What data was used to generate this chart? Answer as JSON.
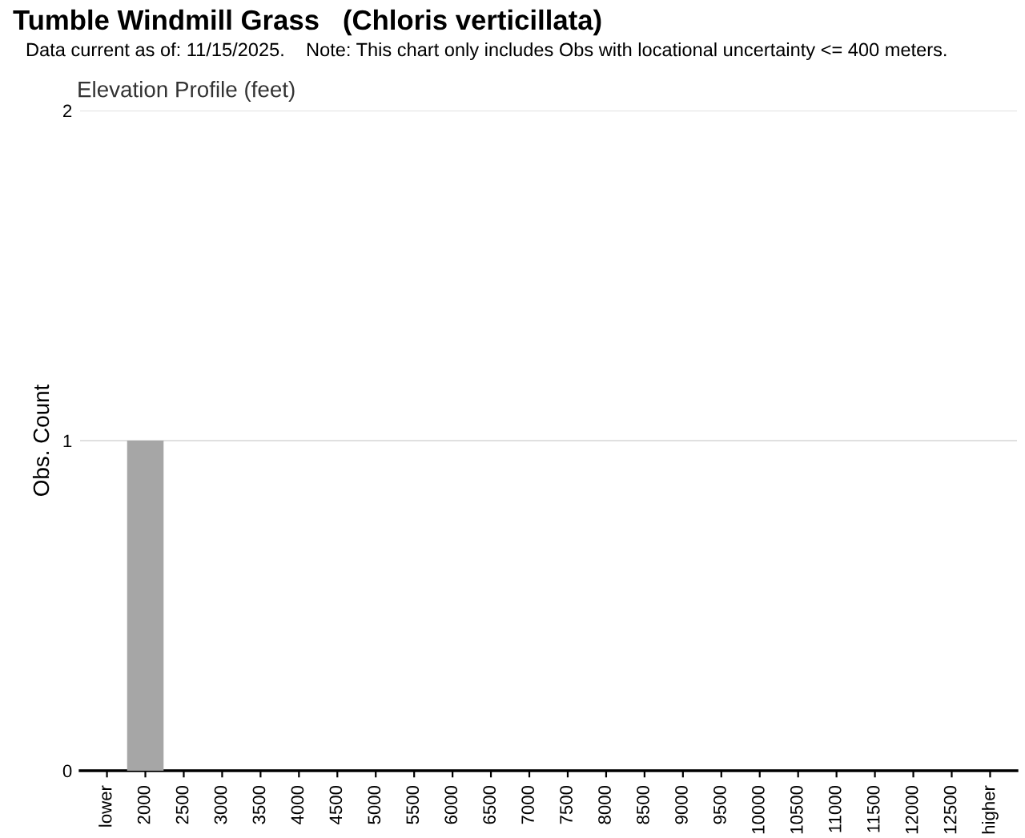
{
  "chart_data": {
    "type": "bar",
    "title": "Tumble Windmill Grass   (Chloris verticillata)",
    "subtitle": "Data current as of: 11/15/2025.    Note: This chart only includes Obs with locational uncertainty <= 400 meters.",
    "annotations": [
      "Elevation Profile (feet)"
    ],
    "ylabel": "Obs. Count",
    "categories": [
      "lower",
      "2000",
      "2500",
      "3000",
      "3500",
      "4000",
      "4500",
      "5000",
      "5500",
      "6000",
      "6500",
      "7000",
      "7500",
      "8000",
      "8500",
      "9000",
      "9500",
      "10000",
      "10500",
      "11000",
      "11500",
      "12000",
      "12500",
      "higher"
    ],
    "values": [
      0,
      1,
      0,
      0,
      0,
      0,
      0,
      0,
      0,
      0,
      0,
      0,
      0,
      0,
      0,
      0,
      0,
      0,
      0,
      0,
      0,
      0,
      0,
      0
    ],
    "color": "#a6a6a6",
    "ylim": [
      0,
      2
    ],
    "yticks": [
      0,
      1,
      2
    ],
    "grid": "y",
    "legend": false
  }
}
